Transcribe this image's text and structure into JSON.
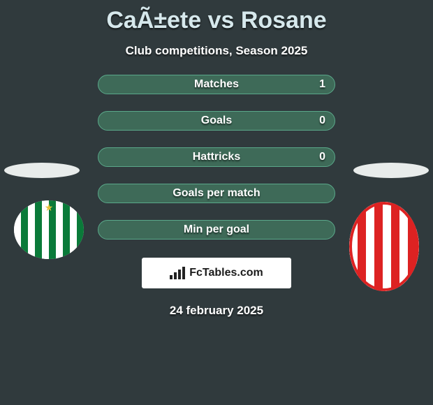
{
  "title": "CaÃ±ete vs Rosane",
  "subtitle": "Club competitions, Season 2025",
  "date": "24 february 2025",
  "brand": {
    "icon_name": "bar-chart-icon",
    "text": "FcTables.com"
  },
  "colors": {
    "background": "#303a3d",
    "title_color": "#d6e8ec",
    "text_color": "#ffffff",
    "avatar_ellipse": "#e8eceb",
    "brand_bg": "#ffffff",
    "brand_text": "#1b1b1b",
    "team1_stripe_a": "#ffffff",
    "team1_stripe_b": "#0a7a39",
    "team1_star": "#e7c23b",
    "team2_stripe_a": "#ffffff",
    "team2_stripe_b": "#d22"
  },
  "pills": {
    "border_color": "#5aa88a",
    "bg_color": "#3e6a58",
    "items": [
      {
        "label": "Matches",
        "value": "1"
      },
      {
        "label": "Goals",
        "value": "0"
      },
      {
        "label": "Hattricks",
        "value": "0"
      },
      {
        "label": "Goals per match",
        "value": ""
      },
      {
        "label": "Min per goal",
        "value": ""
      }
    ]
  }
}
